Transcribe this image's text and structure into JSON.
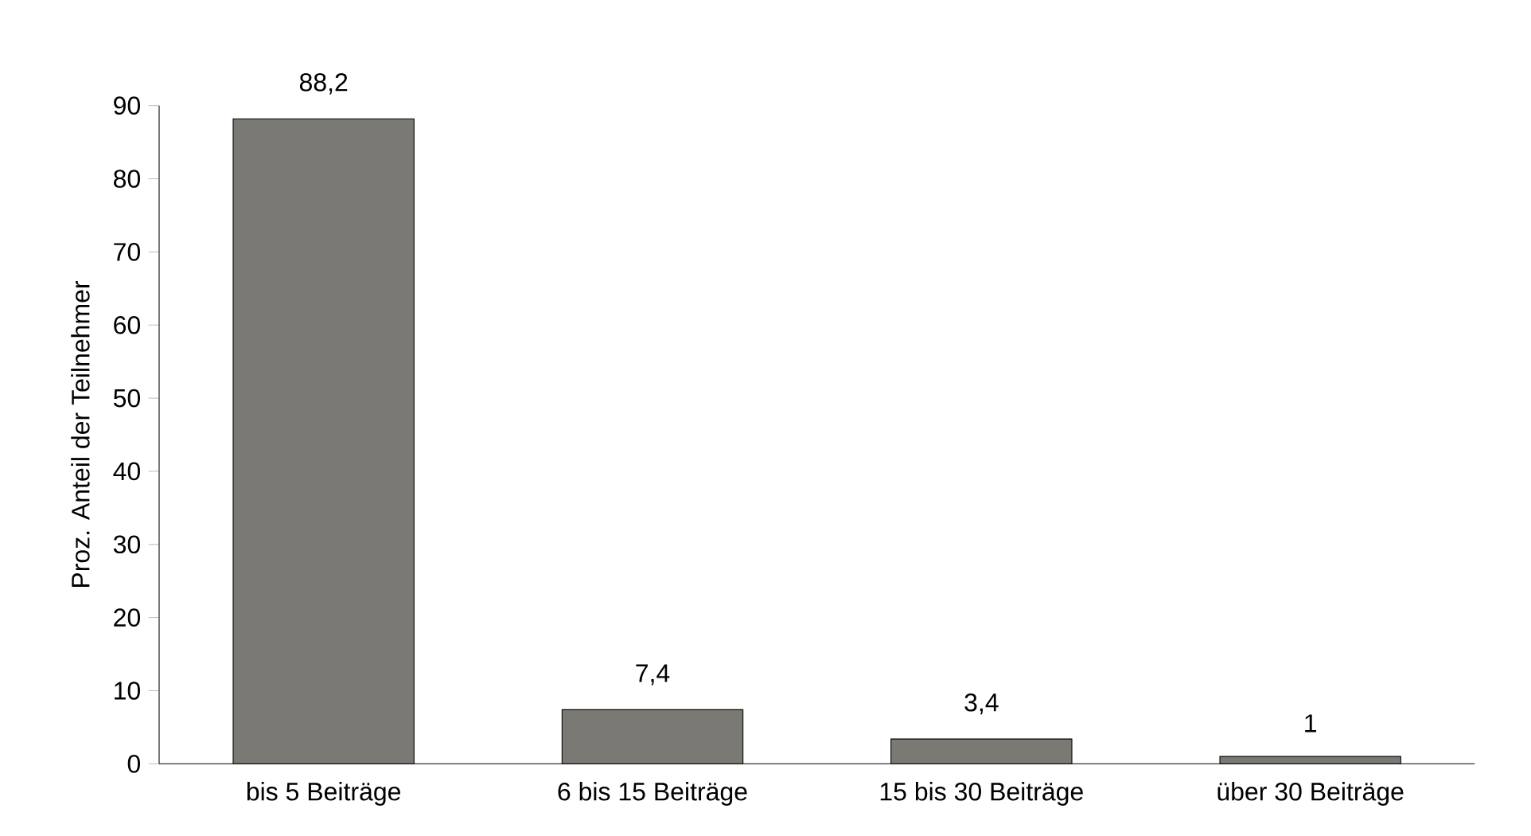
{
  "chart_data": {
    "type": "bar",
    "ylabel": "Proz. Anteil der Teilnehmer",
    "categories": [
      "bis 5 Beiträge",
      "6 bis 15 Beiträge",
      "15 bis 30 Beiträge",
      "über 30 Beiträge"
    ],
    "values": [
      88.2,
      7.4,
      3.4,
      1
    ],
    "value_labels": [
      "88,2",
      "7,4",
      "3,4",
      "1"
    ],
    "color": "#7a7974",
    "ylim": [
      0,
      90
    ],
    "yticks": [
      0,
      10,
      20,
      30,
      40,
      50,
      60,
      70,
      80,
      90
    ]
  }
}
